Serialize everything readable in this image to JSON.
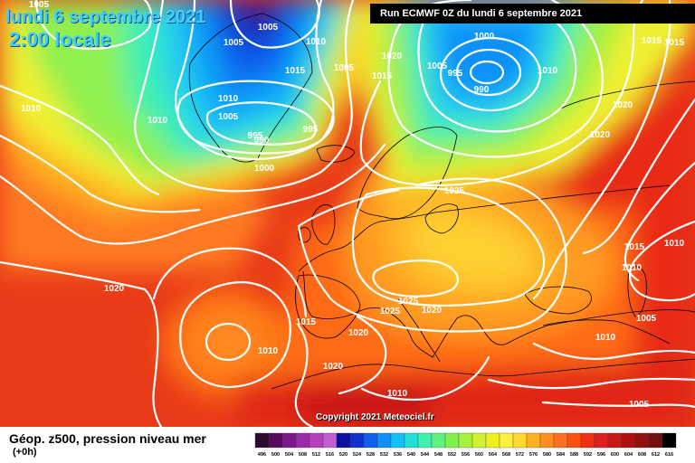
{
  "header": {
    "date": "lundi 6 septembre 2021",
    "local_time": "2:00 locale",
    "run_info": "Run ECMWF 0Z du lundi 6 septembre 2021"
  },
  "footer": {
    "parameter": "Géop. z500, pression niveau mer",
    "lead_time": "(+0h)",
    "copyright": "Copyright 2021 Meteociel.fr"
  },
  "color_scale": {
    "labels": [
      "496",
      "500",
      "504",
      "508",
      "512",
      "516",
      "520",
      "524",
      "528",
      "532",
      "536",
      "540",
      "544",
      "548",
      "552",
      "556",
      "560",
      "564",
      "568",
      "572",
      "576",
      "580",
      "584",
      "588",
      "592",
      "596",
      "600",
      "604",
      "608",
      "612",
      "616"
    ],
    "colors": [
      "#2a0a2e",
      "#5a0a5e",
      "#7a1a8a",
      "#9a2aa8",
      "#b83ec0",
      "#c060d0",
      "#1010a0",
      "#1030d0",
      "#1060f0",
      "#1090f8",
      "#10c0f8",
      "#20e0d8",
      "#40f0b0",
      "#60f080",
      "#80f050",
      "#a8f040",
      "#d0f030",
      "#f0f020",
      "#fff040",
      "#ffd830",
      "#ffb020",
      "#ff9020",
      "#ff7020",
      "#ff5010",
      "#f03010",
      "#e02020",
      "#c81818",
      "#b01010",
      "#901010",
      "#701010",
      "#000000"
    ]
  },
  "pressure_labels": [
    "1005",
    "1005",
    "1010",
    "1005",
    "1015",
    "1010",
    "1005",
    "1020",
    "1015",
    "1000",
    "1005",
    "995",
    "990",
    "1010",
    "1015",
    "1015",
    "1010",
    "1010",
    "1005",
    "995",
    "995",
    "990",
    "1000",
    "1020",
    "1020",
    "1025",
    "1015",
    "1010",
    "1010",
    "1025",
    "1025",
    "1020",
    "1015",
    "1020",
    "1010",
    "1020",
    "1020",
    "1010",
    "1005",
    "1010",
    "1005"
  ]
}
